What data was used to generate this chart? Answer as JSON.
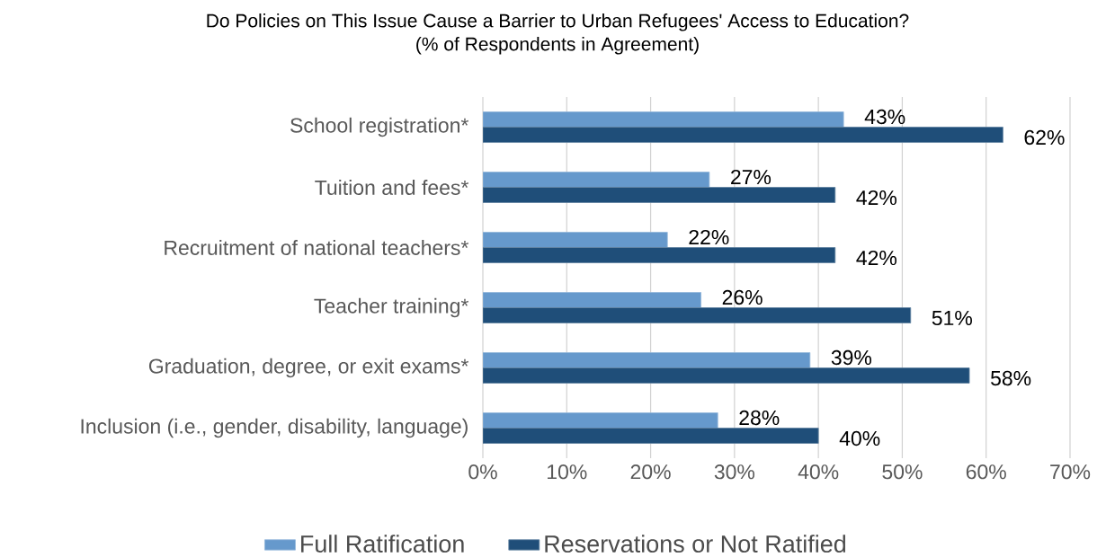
{
  "chart_data": {
    "type": "bar",
    "orientation": "horizontal",
    "title": "Do Policies on This Issue Cause a Barrier to Urban Refugees' Access to Education?",
    "subtitle": "(% of Respondents in Agreement)",
    "categories": [
      "School registration*",
      "Tuition and fees*",
      "Recruitment of national teachers*",
      "Teacher training*",
      "Graduation, degree, or exit exams*",
      "Inclusion (i.e., gender, disability, language)"
    ],
    "series": [
      {
        "name": "Full Ratification",
        "color": "#6699cc",
        "values": [
          43,
          27,
          22,
          26,
          39,
          28
        ],
        "value_labels": [
          "43%",
          "27%",
          "22%",
          "26%",
          "39%",
          "28%"
        ]
      },
      {
        "name": "Reservations or Not Ratified",
        "color": "#1f4e79",
        "values": [
          62,
          42,
          42,
          51,
          58,
          40
        ],
        "value_labels": [
          "62%",
          "42%",
          "42%",
          "51%",
          "58%",
          "40%"
        ]
      }
    ],
    "xlim": [
      0,
      70
    ],
    "xticks": [
      {
        "value": 0,
        "label": "0%"
      },
      {
        "value": 10,
        "label": "10%"
      },
      {
        "value": 20,
        "label": "20%"
      },
      {
        "value": 30,
        "label": "30%"
      },
      {
        "value": 40,
        "label": "40%"
      },
      {
        "value": 50,
        "label": "50%"
      },
      {
        "value": 60,
        "label": "60%"
      },
      {
        "value": 70,
        "label": "70%"
      }
    ],
    "grid": "x",
    "legend": "bottom"
  }
}
